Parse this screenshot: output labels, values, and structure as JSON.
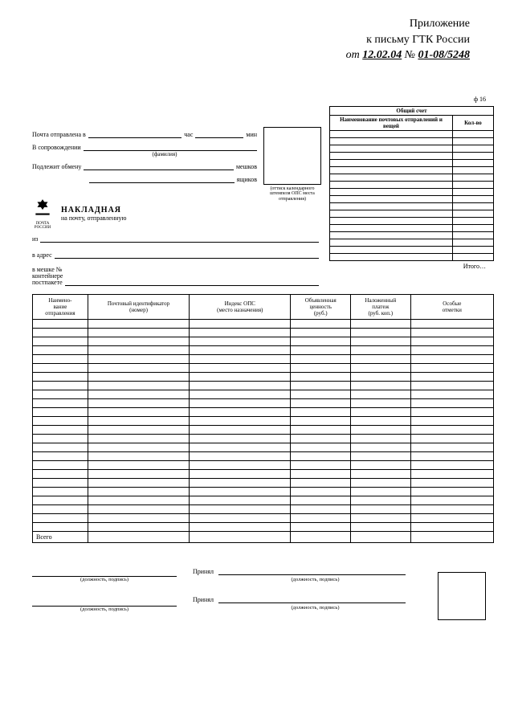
{
  "header": {
    "line1": "Приложение",
    "line2": "к письму ГТК России",
    "line3_prefix": "от",
    "line3_date": "12.02.04",
    "line3_no_label": "№",
    "line3_no": "01-08/5248"
  },
  "form_no": "ф 16",
  "left_block": {
    "row1_label": "Почта отправлена в",
    "row1_mid": "час",
    "row1_tail": "мин",
    "row2_label": "В сопровождении",
    "row2_cap": "(фамилия)",
    "row3_label": "Подлежит обмену",
    "row3_tail": "мешков",
    "row4_tail": "ящиков",
    "stamp_caption": "(оттиск календарного штемпеля ОПС места отправления)",
    "emblem_caption": "ПОЧТА РОССИИ",
    "title": "НАКЛАДНАЯ",
    "subtitle": "на почту, отправленную",
    "from_label": "из",
    "addr_label": "в адрес",
    "bag_l1": "в мешке №",
    "bag_l2": "контейнере",
    "bag_l3": "постпакете"
  },
  "acct_table": {
    "title": "Общий счет",
    "col1": "Наименование почтовых отправлений и вещей",
    "col2": "Кол-во",
    "body_rows": 18,
    "footer": "Итого…"
  },
  "main_table": {
    "columns": [
      "Наимено-\nвание\nотправления",
      "Почтовый идентификатор\n(номер)",
      "Индекс ОПС\n(место назначения)",
      "Объявленная\nценность\n(руб.)",
      "Наложенный\nплатеж\n(руб. коп.)",
      "Особые\nотметки"
    ],
    "col_widths_pct": [
      12,
      22,
      22,
      13,
      13,
      18
    ],
    "body_rows": 24,
    "total_label": "Всего"
  },
  "signatures": {
    "left_cap": "(должность, подпись)",
    "mid1_label": "Принял",
    "mid1_cap": "(должность, подпись)",
    "mid2_label": "Принял",
    "mid2_cap": "(должность, подпись)"
  },
  "colors": {
    "text": "#000000",
    "bg": "#ffffff",
    "border": "#000000"
  }
}
